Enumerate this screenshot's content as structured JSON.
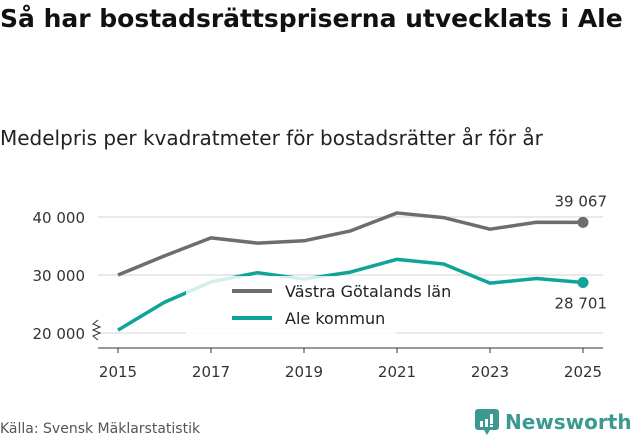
{
  "title": "Så har bostadsrättspriserna utvecklats i Ale",
  "subtitle": "Medelpris per kvadratmeter för bostadsrätter år för år",
  "source": "Källa: Svensk Mäklarstatistik",
  "brand": "Newsworthy",
  "chart_data": {
    "type": "line",
    "title": "Så har bostadsrättspriserna utvecklats i Ale",
    "x": [
      2015,
      2016,
      2017,
      2018,
      2019,
      2020,
      2021,
      2022,
      2023,
      2024,
      2025
    ],
    "xticks": [
      "2015",
      "2017",
      "2019",
      "2021",
      "2023",
      "2025"
    ],
    "yticks": [
      "20 000",
      "30 000",
      "40 000"
    ],
    "ylim": [
      18500,
      42000
    ],
    "series": [
      {
        "name": "Västra Götalands län",
        "color": "#6d6c72",
        "values": [
          30000,
          33300,
          36400,
          35500,
          35900,
          37600,
          40700,
          39900,
          37900,
          39100,
          39067
        ],
        "end_label": "39 067"
      },
      {
        "name": "Ale kommun",
        "color": "#0fa39a",
        "values": [
          20500,
          25300,
          28800,
          30400,
          29300,
          30500,
          32700,
          31900,
          28600,
          29400,
          28701
        ],
        "end_label": "28 701"
      }
    ],
    "legend": "center"
  }
}
